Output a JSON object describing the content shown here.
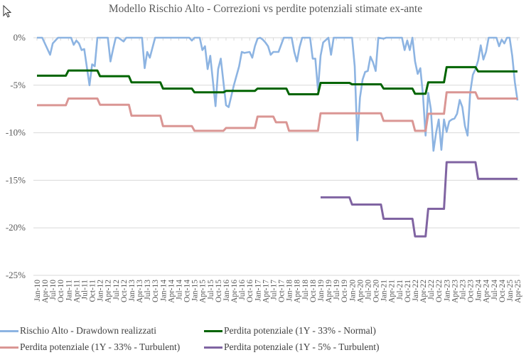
{
  "chart_data": {
    "type": "line",
    "title": "Modello Rischio Alto - Correzioni vs perdite potenziali stimate ex-ante",
    "xlabel": "",
    "ylabel": "",
    "ylim": [
      -25,
      0
    ],
    "yticks": [
      "0%",
      "-5%",
      "-10%",
      "-15%",
      "-20%",
      "-25%"
    ],
    "ytick_values": [
      0,
      -5,
      -10,
      -15,
      -20,
      -25
    ],
    "xrange": [
      "2010-01",
      "2025-04"
    ],
    "xtick_labels": [
      "Jan-10",
      "Apr-10",
      "Jul-10",
      "Oct-10",
      "Jan-11",
      "Apr-11",
      "Jul-11",
      "Oct-11",
      "Jan-12",
      "Apr-12",
      "Jul-12",
      "Oct-12",
      "Jan-13",
      "Apr-13",
      "Jul-13",
      "Oct-13",
      "Jan-14",
      "Apr-14",
      "Jul-14",
      "Oct-14",
      "Jan-15",
      "Apr-15",
      "Jul-15",
      "Oct-15",
      "Jan-16",
      "Apr-16",
      "Jul-16",
      "Oct-16",
      "Jan-17",
      "Apr-17",
      "Jul-17",
      "Oct-17",
      "Jan-18",
      "Apr-18",
      "Jul-18",
      "Oct-18",
      "Jan-19",
      "Apr-19",
      "Jul-19",
      "Oct-19",
      "Jan-20",
      "Apr-20",
      "Jul-20",
      "Oct-20",
      "Jan-21",
      "Apr-21",
      "Jul-21",
      "Oct-21",
      "Jan-22",
      "Apr-22",
      "Jul-22",
      "Oct-22",
      "Jan-23",
      "Apr-23",
      "Jul-23",
      "Oct-23",
      "Jan-24",
      "Apr-24",
      "Jul-24",
      "Oct-24",
      "Jan-25",
      "Apr-25"
    ],
    "grid": true,
    "legend_position": "bottom",
    "series": [
      {
        "name": "Rischio Alto - Drawdown realizzati",
        "color": "#8DB4E2",
        "points": [
          [
            "2010-01",
            0
          ],
          [
            "2010-03",
            0
          ],
          [
            "2010-06",
            -1.8
          ],
          [
            "2010-07",
            -0.6
          ],
          [
            "2010-09",
            0
          ],
          [
            "2011-02",
            0
          ],
          [
            "2011-03",
            -0.75
          ],
          [
            "2011-04",
            -0.3
          ],
          [
            "2011-05",
            -0.6
          ],
          [
            "2011-06",
            -1.3
          ],
          [
            "2011-07",
            -1.2
          ],
          [
            "2011-09",
            -5.0
          ],
          [
            "2011-10",
            -2.8
          ],
          [
            "2011-11",
            -3.0
          ],
          [
            "2011-12",
            0
          ],
          [
            "2012-04",
            0
          ],
          [
            "2012-05",
            -2.5
          ],
          [
            "2012-06",
            -1.2
          ],
          [
            "2012-07",
            0
          ],
          [
            "2012-08",
            0
          ],
          [
            "2012-10",
            -0.4
          ],
          [
            "2012-11",
            0
          ],
          [
            "2013-05",
            0
          ],
          [
            "2013-06",
            -3.2
          ],
          [
            "2013-07",
            -1.5
          ],
          [
            "2013-08",
            -2.1
          ],
          [
            "2013-10",
            0
          ],
          [
            "2014-11",
            0
          ],
          [
            "2014-12",
            -0.3
          ],
          [
            "2015-01",
            0
          ],
          [
            "2015-03",
            0
          ],
          [
            "2015-04",
            -1.3
          ],
          [
            "2015-05",
            -0.9
          ],
          [
            "2015-06",
            -3.3
          ],
          [
            "2015-07",
            -1.9
          ],
          [
            "2015-09",
            -7.2
          ],
          [
            "2015-10",
            -3.3
          ],
          [
            "2015-11",
            -2.2
          ],
          [
            "2016-01",
            -7.1
          ],
          [
            "2016-02",
            -7.3
          ],
          [
            "2016-04",
            -5.0
          ],
          [
            "2016-06",
            -3.0
          ],
          [
            "2016-07",
            -1.5
          ],
          [
            "2016-08",
            -1.6
          ],
          [
            "2016-10",
            -1.5
          ],
          [
            "2016-11",
            -2.1
          ],
          [
            "2016-12",
            -0.9
          ],
          [
            "2017-01",
            -0.1
          ],
          [
            "2017-02",
            0
          ],
          [
            "2017-03",
            -0.2
          ],
          [
            "2017-04",
            -0.5
          ],
          [
            "2017-05",
            -0.9
          ],
          [
            "2017-06",
            -1.8
          ],
          [
            "2017-07",
            -1.5
          ],
          [
            "2017-09",
            -1.5
          ],
          [
            "2017-11",
            0
          ],
          [
            "2018-02",
            0
          ],
          [
            "2018-03",
            -1.5
          ],
          [
            "2018-04",
            -2.5
          ],
          [
            "2018-05",
            -1.0
          ],
          [
            "2018-06",
            0
          ],
          [
            "2018-09",
            0
          ],
          [
            "2018-10",
            -2.2
          ],
          [
            "2018-11",
            -2.2
          ],
          [
            "2018-12",
            -5.5
          ],
          [
            "2019-01",
            -1.9
          ],
          [
            "2019-02",
            -0.5
          ],
          [
            "2019-04",
            0
          ],
          [
            "2019-05",
            -1.8
          ],
          [
            "2019-06",
            0
          ],
          [
            "2020-01",
            0
          ],
          [
            "2020-02",
            -3.0
          ],
          [
            "2020-03",
            -10.8
          ],
          [
            "2020-04",
            -6.3
          ],
          [
            "2020-05",
            -4.4
          ],
          [
            "2020-06",
            -3.6
          ],
          [
            "2020-07",
            -3.5
          ],
          [
            "2020-08",
            -2.0
          ],
          [
            "2020-09",
            -2.6
          ],
          [
            "2020-10",
            -3.5
          ],
          [
            "2020-11",
            0
          ],
          [
            "2021-01",
            -0.1
          ],
          [
            "2021-02",
            0
          ],
          [
            "2021-08",
            0
          ],
          [
            "2021-09",
            -1.3
          ],
          [
            "2021-10",
            -0.3
          ],
          [
            "2021-11",
            -1.3
          ],
          [
            "2021-12",
            0
          ],
          [
            "2022-01",
            -2.5
          ],
          [
            "2022-02",
            -3.8
          ],
          [
            "2022-03",
            -3.2
          ],
          [
            "2022-04",
            -6.0
          ],
          [
            "2022-05",
            -10.3
          ],
          [
            "2022-06",
            -5.8
          ],
          [
            "2022-07",
            -7.5
          ],
          [
            "2022-08",
            -11.9
          ],
          [
            "2022-09",
            -10.0
          ],
          [
            "2022-10",
            -8.6
          ],
          [
            "2022-11",
            -11.8
          ],
          [
            "2022-12",
            -8.6
          ],
          [
            "2023-01",
            -9.9
          ],
          [
            "2023-02",
            -8.8
          ],
          [
            "2023-03",
            -8.6
          ],
          [
            "2023-04",
            -8.5
          ],
          [
            "2023-05",
            -8.0
          ],
          [
            "2023-06",
            -6.55
          ],
          [
            "2023-07",
            -7.3
          ],
          [
            "2023-08",
            -9.3
          ],
          [
            "2023-09",
            -10.3
          ],
          [
            "2023-10",
            -5.75
          ],
          [
            "2023-11",
            -3.9
          ],
          [
            "2023-12",
            -3.3
          ],
          [
            "2024-01",
            -2.4
          ],
          [
            "2024-02",
            -0.8
          ],
          [
            "2024-03",
            -2.3
          ],
          [
            "2024-04",
            -1.5
          ],
          [
            "2024-05",
            0
          ],
          [
            "2024-08",
            0
          ],
          [
            "2024-09",
            -0.9
          ],
          [
            "2024-10",
            -0.2
          ],
          [
            "2024-11",
            -0.6
          ],
          [
            "2024-12",
            0
          ],
          [
            "2025-01",
            0
          ],
          [
            "2025-02",
            -1.9
          ],
          [
            "2025-03",
            -4.7
          ],
          [
            "2025-04",
            -6.6
          ]
        ]
      },
      {
        "name": "Perdita potenziale (1Y - 33% - Normal)",
        "color": "#006400",
        "steps": [
          [
            "2010-01",
            "2010-12",
            -4.0
          ],
          [
            "2011-01",
            "2011-12",
            -3.45
          ],
          [
            "2012-01",
            "2012-12",
            -4.05
          ],
          [
            "2013-01",
            "2013-12",
            -4.7
          ],
          [
            "2014-01",
            "2014-12",
            -5.35
          ],
          [
            "2015-01",
            "2015-12",
            -5.75
          ],
          [
            "2016-01",
            "2016-12",
            -5.6
          ],
          [
            "2017-01",
            "2017-12",
            -5.35
          ],
          [
            "2018-01",
            "2018-12",
            -5.95
          ],
          [
            "2019-01",
            "2019-12",
            -4.75
          ],
          [
            "2020-01",
            "2020-12",
            -4.9
          ],
          [
            "2021-01",
            "2021-12",
            -5.35
          ],
          [
            "2022-01",
            "2022-05",
            -5.9
          ],
          [
            "2022-06",
            "2022-12",
            -4.7
          ],
          [
            "2023-01",
            "2023-12",
            -3.1
          ],
          [
            "2024-01",
            "2025-04",
            -3.55
          ]
        ]
      },
      {
        "name": "Perdita potenziale (1Y - 33% - Turbulent)",
        "color": "#DA9694",
        "steps": [
          [
            "2010-01",
            "2010-12",
            -7.1
          ],
          [
            "2011-01",
            "2011-12",
            -6.4
          ],
          [
            "2012-01",
            "2012-12",
            -7.05
          ],
          [
            "2013-01",
            "2013-12",
            -8.2
          ],
          [
            "2014-01",
            "2014-12",
            -9.3
          ],
          [
            "2015-01",
            "2015-12",
            -9.8
          ],
          [
            "2016-01",
            "2016-12",
            -9.5
          ],
          [
            "2017-01",
            "2017-07",
            -8.3
          ],
          [
            "2017-08",
            "2017-12",
            -8.9
          ],
          [
            "2018-01",
            "2018-12",
            -9.8
          ],
          [
            "2019-01",
            "2020-12",
            -7.95
          ],
          [
            "2021-01",
            "2021-12",
            -8.75
          ],
          [
            "2022-01",
            "2022-05",
            -9.8
          ],
          [
            "2022-06",
            "2022-12",
            -8.0
          ],
          [
            "2023-01",
            "2023-12",
            -5.75
          ],
          [
            "2024-01",
            "2025-04",
            -6.4
          ]
        ]
      },
      {
        "name": "Perdita potenziale (1Y - 5% - Turbulent)",
        "color": "#8064A2",
        "steps": [
          [
            "2019-01",
            "2019-12",
            -16.8
          ],
          [
            "2020-01",
            "2020-12",
            -17.55
          ],
          [
            "2021-01",
            "2021-12",
            -19.05
          ],
          [
            "2022-01",
            "2022-05",
            -20.9
          ],
          [
            "2022-06",
            "2022-12",
            -18.0
          ],
          [
            "2023-01",
            "2023-12",
            -13.1
          ],
          [
            "2024-01",
            "2025-04",
            -14.85
          ]
        ]
      }
    ]
  }
}
